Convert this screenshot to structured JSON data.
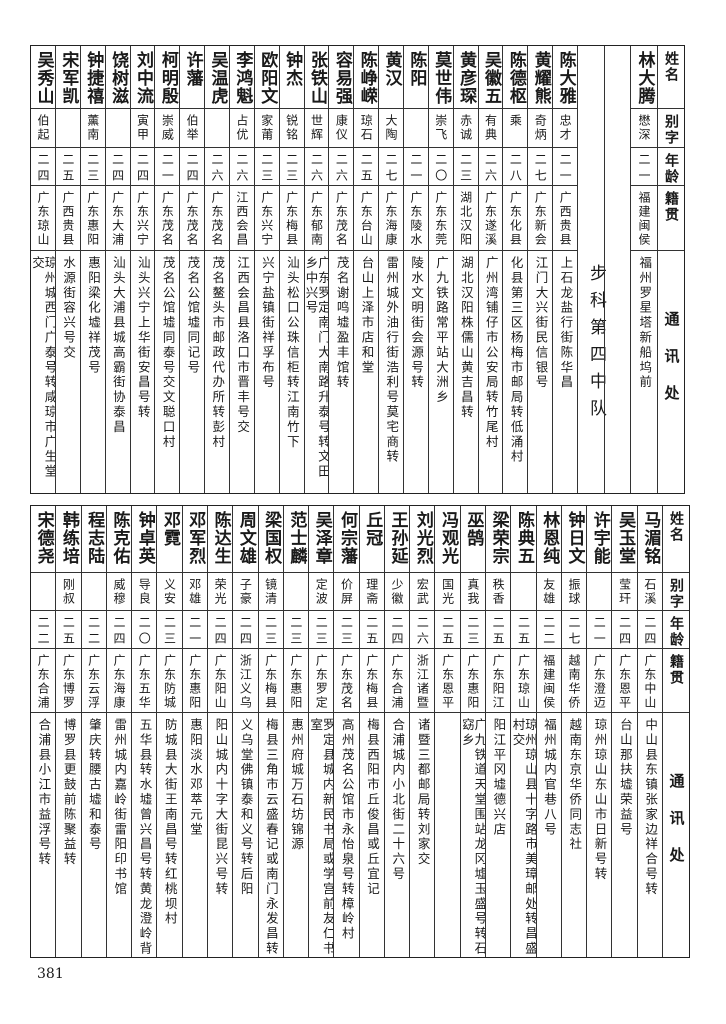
{
  "headers": {
    "name": "姓名",
    "alias": "别字",
    "age": "年龄",
    "origin": "籍贯",
    "address": "通讯处"
  },
  "top": {
    "lead": {
      "name": "林大腾",
      "alias": "懋深",
      "age": "二一",
      "origin": "福建闽侯",
      "address": "福州罗星塔新船坞前"
    },
    "group_label": "步科第四中队",
    "people": [
      {
        "name": "陈大雅",
        "alias": "忠才",
        "age": "二一",
        "origin": "广西贵县",
        "address": "上石龙盐行街陈华昌"
      },
      {
        "name": "黄耀熊",
        "alias": "奇炳",
        "age": "二七",
        "origin": "广东新会",
        "address": "江门大兴街民信银号"
      },
      {
        "name": "陈德枢",
        "alias": "乘",
        "age": "二八",
        "origin": "广东化县",
        "address": "化县第三区杨梅市邮局转低涌村"
      },
      {
        "name": "吴徽五",
        "alias": "有典",
        "age": "二六",
        "origin": "广东遂溪",
        "address": "广州湾铺仔市公安局转竹尾村"
      },
      {
        "name": "黄彦琛",
        "alias": "赤诚",
        "age": "二三",
        "origin": "湖北汉阳",
        "address": "湖北汉阳株儒山黄吉昌转"
      },
      {
        "name": "莫世伟",
        "alias": "崇飞",
        "age": "二〇",
        "origin": "广东东莞",
        "address": "广九铁路常平站大洲乡"
      },
      {
        "name": "陈阳",
        "alias": "",
        "age": "二一",
        "origin": "广东陵水",
        "address": "陵水文明街会源号转"
      },
      {
        "name": "黄汉",
        "alias": "大陶",
        "age": "二七",
        "origin": "广东海康",
        "address": "雷州城外油行街浩利号莫宅商转"
      },
      {
        "name": "陈峥嵘",
        "alias": "琼石",
        "age": "二五",
        "origin": "广东台山",
        "address": "台山上泽市店和堂"
      },
      {
        "name": "容易强",
        "alias": "康仪",
        "age": "二六",
        "origin": "广东茂名",
        "address": "茂名谢鸣墟盈丰馆转"
      },
      {
        "name": "张铁山",
        "alias": "世辉",
        "age": "二六",
        "origin": "广东郁南",
        "address": "广东罗定南门大南路升泰号转文田乡中兴号"
      },
      {
        "name": "钟杰",
        "alias": "锐铭",
        "age": "二三",
        "origin": "广东梅县",
        "address": "汕头松口公珠信柜转江南竹下"
      },
      {
        "name": "欧阳文",
        "alias": "家莆",
        "age": "二三",
        "origin": "广东兴宁",
        "address": "兴宁盐镇街祥孚布号"
      },
      {
        "name": "李鸿魁",
        "alias": "占优",
        "age": "二六",
        "origin": "江西会昌",
        "address": "江西会昌县洛口市晋丰号交"
      },
      {
        "name": "吴温虎",
        "alias": "",
        "age": "二六",
        "origin": "广东茂名",
        "address": "茂名鳌头市邮政代办所转彭村"
      },
      {
        "name": "许藩",
        "alias": "伯举",
        "age": "二四",
        "origin": "广东茂名",
        "address": "茂名公馆墟同记号"
      },
      {
        "name": "柯明殷",
        "alias": "崇威",
        "age": "二一",
        "origin": "广东茂名",
        "address": "茂名公馆墟同泰号交文聪口村"
      },
      {
        "name": "刘中流",
        "alias": "寅甲",
        "age": "二四",
        "origin": "广东兴宁",
        "address": "汕头兴宁上华街安昌号转"
      },
      {
        "name": "饶树滋",
        "alias": "",
        "age": "二四",
        "origin": "广东大浦",
        "address": "汕头大浦县城高霸街协泰昌"
      },
      {
        "name": "钟捷禧",
        "alias": "薰南",
        "age": "二三",
        "origin": "广东惠阳",
        "address": "惠阳梁化墟祥茂号"
      },
      {
        "name": "宋军凯",
        "alias": "",
        "age": "二五",
        "origin": "广西贵县",
        "address": "水源街容兴号交"
      },
      {
        "name": "吴秀山",
        "alias": "伯起",
        "age": "二四",
        "origin": "广东琼山",
        "address": "琼州城西门广泰号转咸琼市广生堂交"
      }
    ]
  },
  "bottom": {
    "people": [
      {
        "name": "马湄铭",
        "alias": "石溪",
        "age": "二四",
        "origin": "广东中山",
        "address": "中山县东镇张家边祥合号转"
      },
      {
        "name": "吴玉堂",
        "alias": "莹玕",
        "age": "二四",
        "origin": "广东恩平",
        "address": "台山那扶墟荣益号"
      },
      {
        "name": "许宇能",
        "alias": "",
        "age": "二一",
        "origin": "广东澄迈",
        "address": "琼州琼山东山市日新号转"
      },
      {
        "name": "钟日文",
        "alias": "振球",
        "age": "二七",
        "origin": "越南华侨",
        "address": "越南东京华侨同志社"
      },
      {
        "name": "林恩纯",
        "alias": "友雄",
        "age": "二二",
        "origin": "福建闽侯",
        "address": "福州城内官巷八号"
      },
      {
        "name": "陈典五",
        "alias": "",
        "age": "二五",
        "origin": "广东琼山",
        "address": "琼州琼山县十字路市美璋邮处转昌盛村交"
      },
      {
        "name": "梁荣宗",
        "alias": "秩香",
        "age": "二五",
        "origin": "广东阳江",
        "address": "阳江平冈墟德兴店"
      },
      {
        "name": "巫鹄",
        "alias": "真我",
        "age": "二三",
        "origin": "广东惠阳",
        "address": "广九铁道天堂围站龙冈墟玉盛号转石窈乡"
      },
      {
        "name": "冯观光",
        "alias": "国光",
        "age": "二五",
        "origin": "广东恩平",
        "address": ""
      },
      {
        "name": "刘光烈",
        "alias": "宏武",
        "age": "二六",
        "origin": "浙江诸暨",
        "address": "诸暨三都邮局转刘家交"
      },
      {
        "name": "王孙延",
        "alias": "少徽",
        "age": "二四",
        "origin": "广东合浦",
        "address": "合浦城内小北街二十六号"
      },
      {
        "name": "丘冠",
        "alias": "理斋",
        "age": "二五",
        "origin": "广东梅县",
        "address": "梅县西阳市丘俊昌或丘宜记"
      },
      {
        "name": "何宗藩",
        "alias": "价屏",
        "age": "二三",
        "origin": "广东茂名",
        "address": "高州茂名公馆市永怡泉号转樟岭村"
      },
      {
        "name": "吴泽章",
        "alias": "定波",
        "age": "二三",
        "origin": "广东罗定",
        "address": "罗定县城内新民书局或学宫前友仁书室"
      },
      {
        "name": "范士麟",
        "alias": "",
        "age": "二三",
        "origin": "广东惠阳",
        "address": "惠州府城万石坊锦源"
      },
      {
        "name": "梁国权",
        "alias": "镜清",
        "age": "二三",
        "origin": "广东梅县",
        "address": "梅县三角市云盛春记或南门永发昌转"
      },
      {
        "name": "周文雄",
        "alias": "子豪",
        "age": "二四",
        "origin": "浙江义乌",
        "address": "义乌堂佛镇泰和义号转后阳"
      },
      {
        "name": "陈达生",
        "alias": "荣光",
        "age": "二四",
        "origin": "广东阳山",
        "address": "阳山城内十字大街昆兴号转"
      },
      {
        "name": "邓军烈",
        "alias": "邓雄",
        "age": "二一",
        "origin": "广东惠阳",
        "address": "惠阳淡水邓萃元堂"
      },
      {
        "name": "邓霓",
        "alias": "义安",
        "age": "二三",
        "origin": "广东防城",
        "address": "防城县大街王南昌号转红桃坝村"
      },
      {
        "name": "钟卓英",
        "alias": "导良",
        "age": "二〇",
        "origin": "广东五华",
        "address": "五华县转水墟曾兴昌号转黄龙澄岭背"
      },
      {
        "name": "陈克佑",
        "alias": "威穆",
        "age": "二四",
        "origin": "广东海康",
        "address": "雷州城内嘉岭街雷阳印书馆"
      },
      {
        "name": "程志陆",
        "alias": "",
        "age": "二二",
        "origin": "广东云浮",
        "address": "肇庆转腰古墟和泰号"
      },
      {
        "name": "韩练培",
        "alias": "刚叔",
        "age": "二五",
        "origin": "广东博罗",
        "address": "博罗县更鼓前陈聚益转"
      },
      {
        "name": "宋德尧",
        "alias": "",
        "age": "二二",
        "origin": "广东合浦",
        "address": "合浦县小江市益浮号转"
      }
    ]
  },
  "page_number": "381"
}
